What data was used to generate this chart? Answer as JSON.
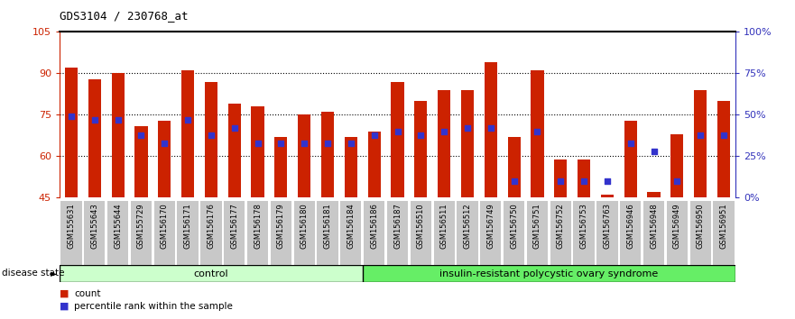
{
  "title": "GDS3104 / 230768_at",
  "samples": [
    "GSM155631",
    "GSM155643",
    "GSM155644",
    "GSM155729",
    "GSM156170",
    "GSM156171",
    "GSM156176",
    "GSM156177",
    "GSM156178",
    "GSM156179",
    "GSM156180",
    "GSM156181",
    "GSM156184",
    "GSM156186",
    "GSM156187",
    "GSM156510",
    "GSM156511",
    "GSM156512",
    "GSM156749",
    "GSM156750",
    "GSM156751",
    "GSM156752",
    "GSM156753",
    "GSM156763",
    "GSM156946",
    "GSM156948",
    "GSM156949",
    "GSM156950",
    "GSM156951"
  ],
  "bar_values": [
    92,
    88,
    90,
    71,
    73,
    91,
    87,
    79,
    78,
    67,
    75,
    76,
    67,
    69,
    87,
    80,
    84,
    84,
    94,
    67,
    91,
    59,
    59,
    46,
    73,
    47,
    68,
    84,
    80
  ],
  "dot_pct": [
    49,
    47,
    47,
    38,
    33,
    47,
    38,
    42,
    33,
    33,
    33,
    33,
    33,
    38,
    40,
    38,
    40,
    42,
    42,
    10,
    40,
    10,
    10,
    10,
    33,
    28,
    10,
    38,
    38
  ],
  "control_count": 13,
  "disease_count": 16,
  "ymin": 45,
  "ymax": 105,
  "rmin": 0,
  "rmax": 100,
  "yticks_left": [
    45,
    60,
    75,
    90,
    105
  ],
  "yticks_right": [
    0,
    25,
    50,
    75,
    100
  ],
  "ytick_labels_right": [
    "0%",
    "25%",
    "50%",
    "75%",
    "100%"
  ],
  "hgrid_values": [
    60,
    75,
    90
  ],
  "bar_color": "#CC2200",
  "dot_color": "#3333CC",
  "control_bg": "#CCFFCC",
  "disease_bg": "#66EE66",
  "bar_width": 0.55,
  "xlabel_color": "#CC2200",
  "right_axis_color": "#3333BB"
}
